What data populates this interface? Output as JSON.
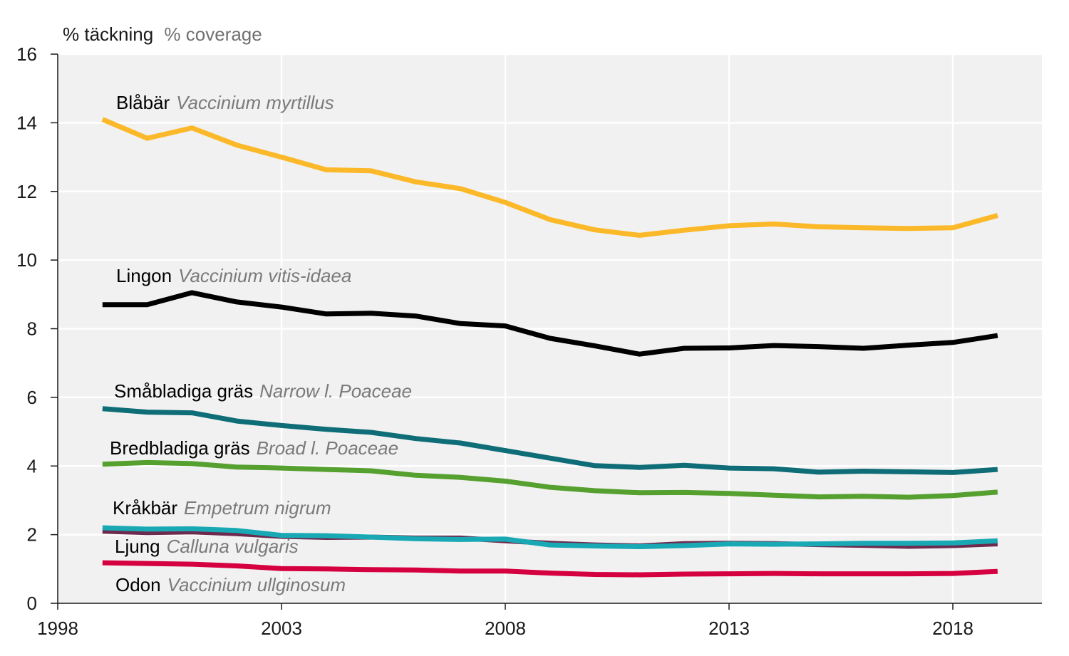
{
  "chart_data": {
    "type": "line",
    "ylabel_sv": "% täckning",
    "ylabel_en": "% coverage",
    "xlim": [
      1998,
      2020
    ],
    "ylim": [
      0,
      16
    ],
    "x_ticks": [
      "1998",
      "2003",
      "2008",
      "2013",
      "2018"
    ],
    "y_ticks": [
      "0",
      "2",
      "4",
      "6",
      "8",
      "10",
      "12",
      "14",
      "16"
    ],
    "grid": true,
    "x": [
      1999,
      2000,
      2001,
      2002,
      2003,
      2004,
      2005,
      2006,
      2007,
      2008,
      2009,
      2010,
      2011,
      2012,
      2013,
      2014,
      2015,
      2016,
      2017,
      2018,
      2019
    ],
    "series": [
      {
        "name": "Blåbär",
        "latin": "Vaccinium myrtillus",
        "color": "#FBB829",
        "values": [
          14.1,
          13.55,
          13.85,
          13.35,
          13.0,
          12.63,
          12.6,
          12.28,
          12.08,
          11.68,
          11.18,
          10.88,
          10.72,
          10.87,
          11.0,
          11.05,
          10.97,
          10.94,
          10.92,
          10.94,
          11.3
        ]
      },
      {
        "name": "Lingon",
        "latin": "Vaccinium vitis-idaea",
        "color": "#000000",
        "values": [
          8.7,
          8.7,
          9.05,
          8.78,
          8.63,
          8.43,
          8.45,
          8.37,
          8.15,
          8.08,
          7.72,
          7.5,
          7.26,
          7.43,
          7.44,
          7.51,
          7.48,
          7.43,
          7.52,
          7.6,
          7.8
        ]
      },
      {
        "name": "Småbladiga gräs",
        "latin": "Narrow l. Poaceae",
        "color": "#0E6D77",
        "values": [
          5.67,
          5.57,
          5.55,
          5.31,
          5.18,
          5.07,
          4.98,
          4.8,
          4.67,
          4.45,
          4.23,
          4.01,
          3.96,
          4.02,
          3.94,
          3.92,
          3.82,
          3.85,
          3.83,
          3.81,
          3.9
        ]
      },
      {
        "name": "Bredbladiga gräs",
        "latin": "Broad l. Poaceae",
        "color": "#55A02E",
        "values": [
          4.05,
          4.1,
          4.07,
          3.97,
          3.94,
          3.9,
          3.86,
          3.73,
          3.67,
          3.56,
          3.38,
          3.28,
          3.22,
          3.23,
          3.2,
          3.15,
          3.1,
          3.12,
          3.09,
          3.14,
          3.24
        ]
      },
      {
        "name": "Kråkbär",
        "latin": "Empetrum nigrum",
        "color": "#19A9B5",
        "values": [
          2.2,
          2.16,
          2.17,
          2.12,
          1.98,
          1.97,
          1.93,
          1.88,
          1.86,
          1.87,
          1.7,
          1.67,
          1.65,
          1.68,
          1.73,
          1.72,
          1.73,
          1.75,
          1.75,
          1.76,
          1.82
        ]
      },
      {
        "name": "Ljung",
        "latin": "Calluna vulgaris",
        "color": "#6E2A4E",
        "values": [
          2.1,
          2.06,
          2.08,
          2.03,
          1.95,
          1.92,
          1.93,
          1.9,
          1.9,
          1.82,
          1.75,
          1.7,
          1.67,
          1.74,
          1.75,
          1.74,
          1.71,
          1.69,
          1.66,
          1.68,
          1.73
        ]
      },
      {
        "name": "Odon",
        "latin": "Vaccinium ullginosum",
        "color": "#D5003F",
        "values": [
          1.18,
          1.16,
          1.14,
          1.09,
          1.01,
          1.0,
          0.98,
          0.97,
          0.94,
          0.94,
          0.88,
          0.84,
          0.83,
          0.85,
          0.86,
          0.87,
          0.86,
          0.86,
          0.86,
          0.87,
          0.93
        ]
      }
    ]
  }
}
